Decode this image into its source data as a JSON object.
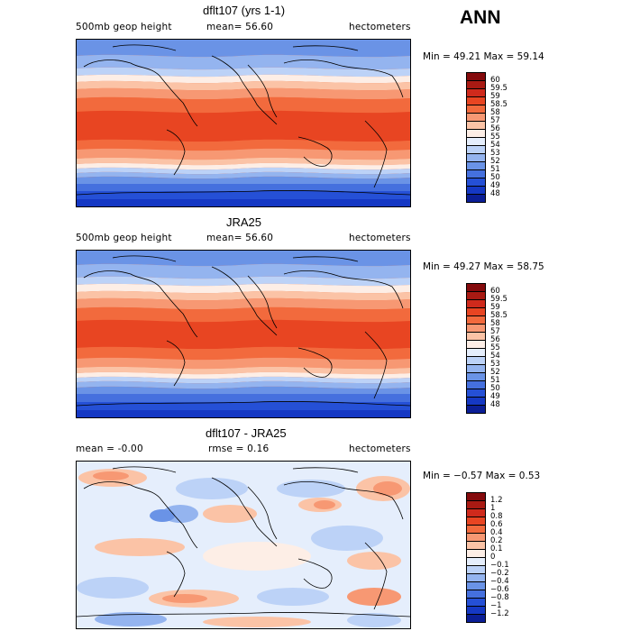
{
  "season_label": "ANN",
  "panels": [
    {
      "id": "model",
      "title": "dflt107 (yrs 1-1)",
      "left_text": "500mb geop height",
      "center_text": "mean=  56.60",
      "right_text": "hectometers",
      "minmax_text": "Min =  49.21 Max =  59.14",
      "colorbar_colors": [
        "#840a0c",
        "#a91a13",
        "#cf2a1c",
        "#e84522",
        "#f26a3d",
        "#f79873",
        "#fbc3a6",
        "#fdeee6",
        "#e5eefc",
        "#bcd2f7",
        "#94b4ef",
        "#6a93e6",
        "#4570de",
        "#2550d6",
        "#1538c4",
        "#0b1e96"
      ],
      "colorbar_labels": [
        "60",
        "59.5",
        "59",
        "58.5",
        "58",
        "57",
        "56",
        "55",
        "54",
        "53",
        "52",
        "51",
        "50",
        "49",
        "48"
      ]
    },
    {
      "id": "obs",
      "title": "JRA25",
      "left_text": "500mb geop height",
      "center_text": "mean=  56.60",
      "right_text": "hectometers",
      "minmax_text": "Min =  49.27 Max =  58.75",
      "colorbar_colors": [
        "#840a0c",
        "#a91a13",
        "#cf2a1c",
        "#e84522",
        "#f26a3d",
        "#f79873",
        "#fbc3a6",
        "#fdeee6",
        "#e5eefc",
        "#bcd2f7",
        "#94b4ef",
        "#6a93e6",
        "#4570de",
        "#2550d6",
        "#1538c4",
        "#0b1e96"
      ],
      "colorbar_labels": [
        "60",
        "59.5",
        "59",
        "58.5",
        "58",
        "57",
        "56",
        "55",
        "54",
        "53",
        "52",
        "51",
        "50",
        "49",
        "48"
      ]
    },
    {
      "id": "diff",
      "title": "dflt107 - JRA25",
      "left_text": "mean =  -0.00",
      "center_text": "rmse =   0.16",
      "right_text": "hectometers",
      "minmax_text": "Min =  −0.57 Max =   0.53",
      "colorbar_colors": [
        "#840a0c",
        "#a91a13",
        "#cf2a1c",
        "#e84522",
        "#f26a3d",
        "#f79873",
        "#fbc3a6",
        "#fdeee6",
        "#e5eefc",
        "#bcd2f7",
        "#94b4ef",
        "#6a93e6",
        "#4570de",
        "#2550d6",
        "#1538c4",
        "#0b1e96"
      ],
      "colorbar_labels": [
        "1.2",
        "1",
        "0.8",
        "0.6",
        "0.4",
        "0.2",
        "0.1",
        "0",
        "−0.1",
        "−0.2",
        "−0.4",
        "−0.6",
        "−0.8",
        "−1",
        "−1.2"
      ]
    }
  ]
}
